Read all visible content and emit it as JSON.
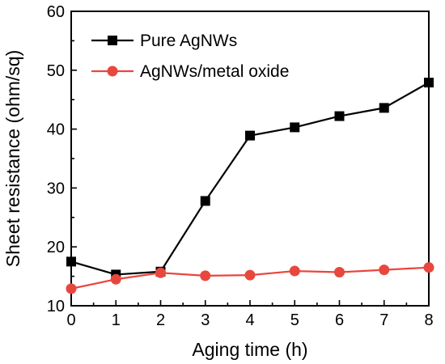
{
  "chart_data": {
    "type": "line",
    "title": "",
    "xlabel": "Aging time (h)",
    "ylabel": "Sheet resistance (ohm/sq)",
    "xlim": [
      0,
      8
    ],
    "ylim": [
      10,
      60
    ],
    "xticks": [
      0,
      1,
      2,
      3,
      4,
      5,
      6,
      7,
      8
    ],
    "yticks": [
      10,
      20,
      30,
      40,
      50,
      60
    ],
    "grid": false,
    "legend_position": "top-left",
    "series": [
      {
        "name": "Pure AgNWs",
        "color": "#000000",
        "marker": "square",
        "x": [
          0,
          1,
          2,
          3,
          4,
          5,
          6,
          7,
          8
        ],
        "y": [
          17.5,
          15.3,
          15.8,
          27.8,
          38.9,
          40.3,
          42.2,
          43.6,
          47.9
        ]
      },
      {
        "name": "AgNWs/metal oxide",
        "color": "#e8473e",
        "marker": "circle",
        "x": [
          0,
          1,
          2,
          3,
          4,
          5,
          6,
          7,
          8
        ],
        "y": [
          12.9,
          14.5,
          15.6,
          15.1,
          15.2,
          15.9,
          15.7,
          16.1,
          16.5
        ]
      }
    ]
  }
}
